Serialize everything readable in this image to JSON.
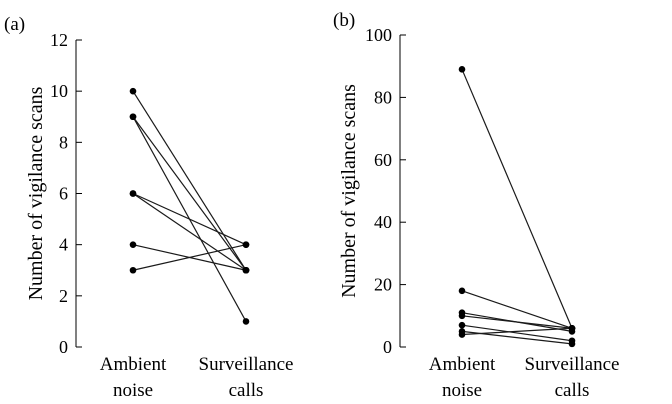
{
  "chart_data": [
    {
      "type": "line",
      "panel_label": "(a)",
      "ylabel": "Number of vigilance scans",
      "ylim": [
        0,
        12
      ],
      "yticks": [
        0,
        2,
        4,
        6,
        8,
        10,
        12
      ],
      "categories": [
        [
          "Ambient",
          "noise"
        ],
        [
          "Surveillance",
          "calls"
        ]
      ],
      "pairs": [
        {
          "values": [
            10,
            3
          ]
        },
        {
          "values": [
            9,
            3
          ]
        },
        {
          "values": [
            9,
            1
          ]
        },
        {
          "values": [
            6,
            4
          ]
        },
        {
          "values": [
            6,
            3
          ]
        },
        {
          "values": [
            4,
            3
          ]
        },
        {
          "values": [
            3,
            4
          ]
        }
      ],
      "grid": false
    },
    {
      "type": "line",
      "panel_label": "(b)",
      "ylabel": "Number of vigilance scans",
      "ylim": [
        0,
        100
      ],
      "yticks": [
        0,
        20,
        40,
        60,
        80,
        100
      ],
      "categories": [
        [
          "Ambient",
          "noise"
        ],
        [
          "Surveillance",
          "calls"
        ]
      ],
      "pairs": [
        {
          "values": [
            89,
            6
          ]
        },
        {
          "values": [
            18,
            6
          ]
        },
        {
          "values": [
            11,
            5
          ]
        },
        {
          "values": [
            10,
            6
          ]
        },
        {
          "values": [
            7,
            2
          ]
        },
        {
          "values": [
            5,
            1
          ]
        },
        {
          "values": [
            4,
            6
          ]
        }
      ],
      "grid": false
    }
  ]
}
